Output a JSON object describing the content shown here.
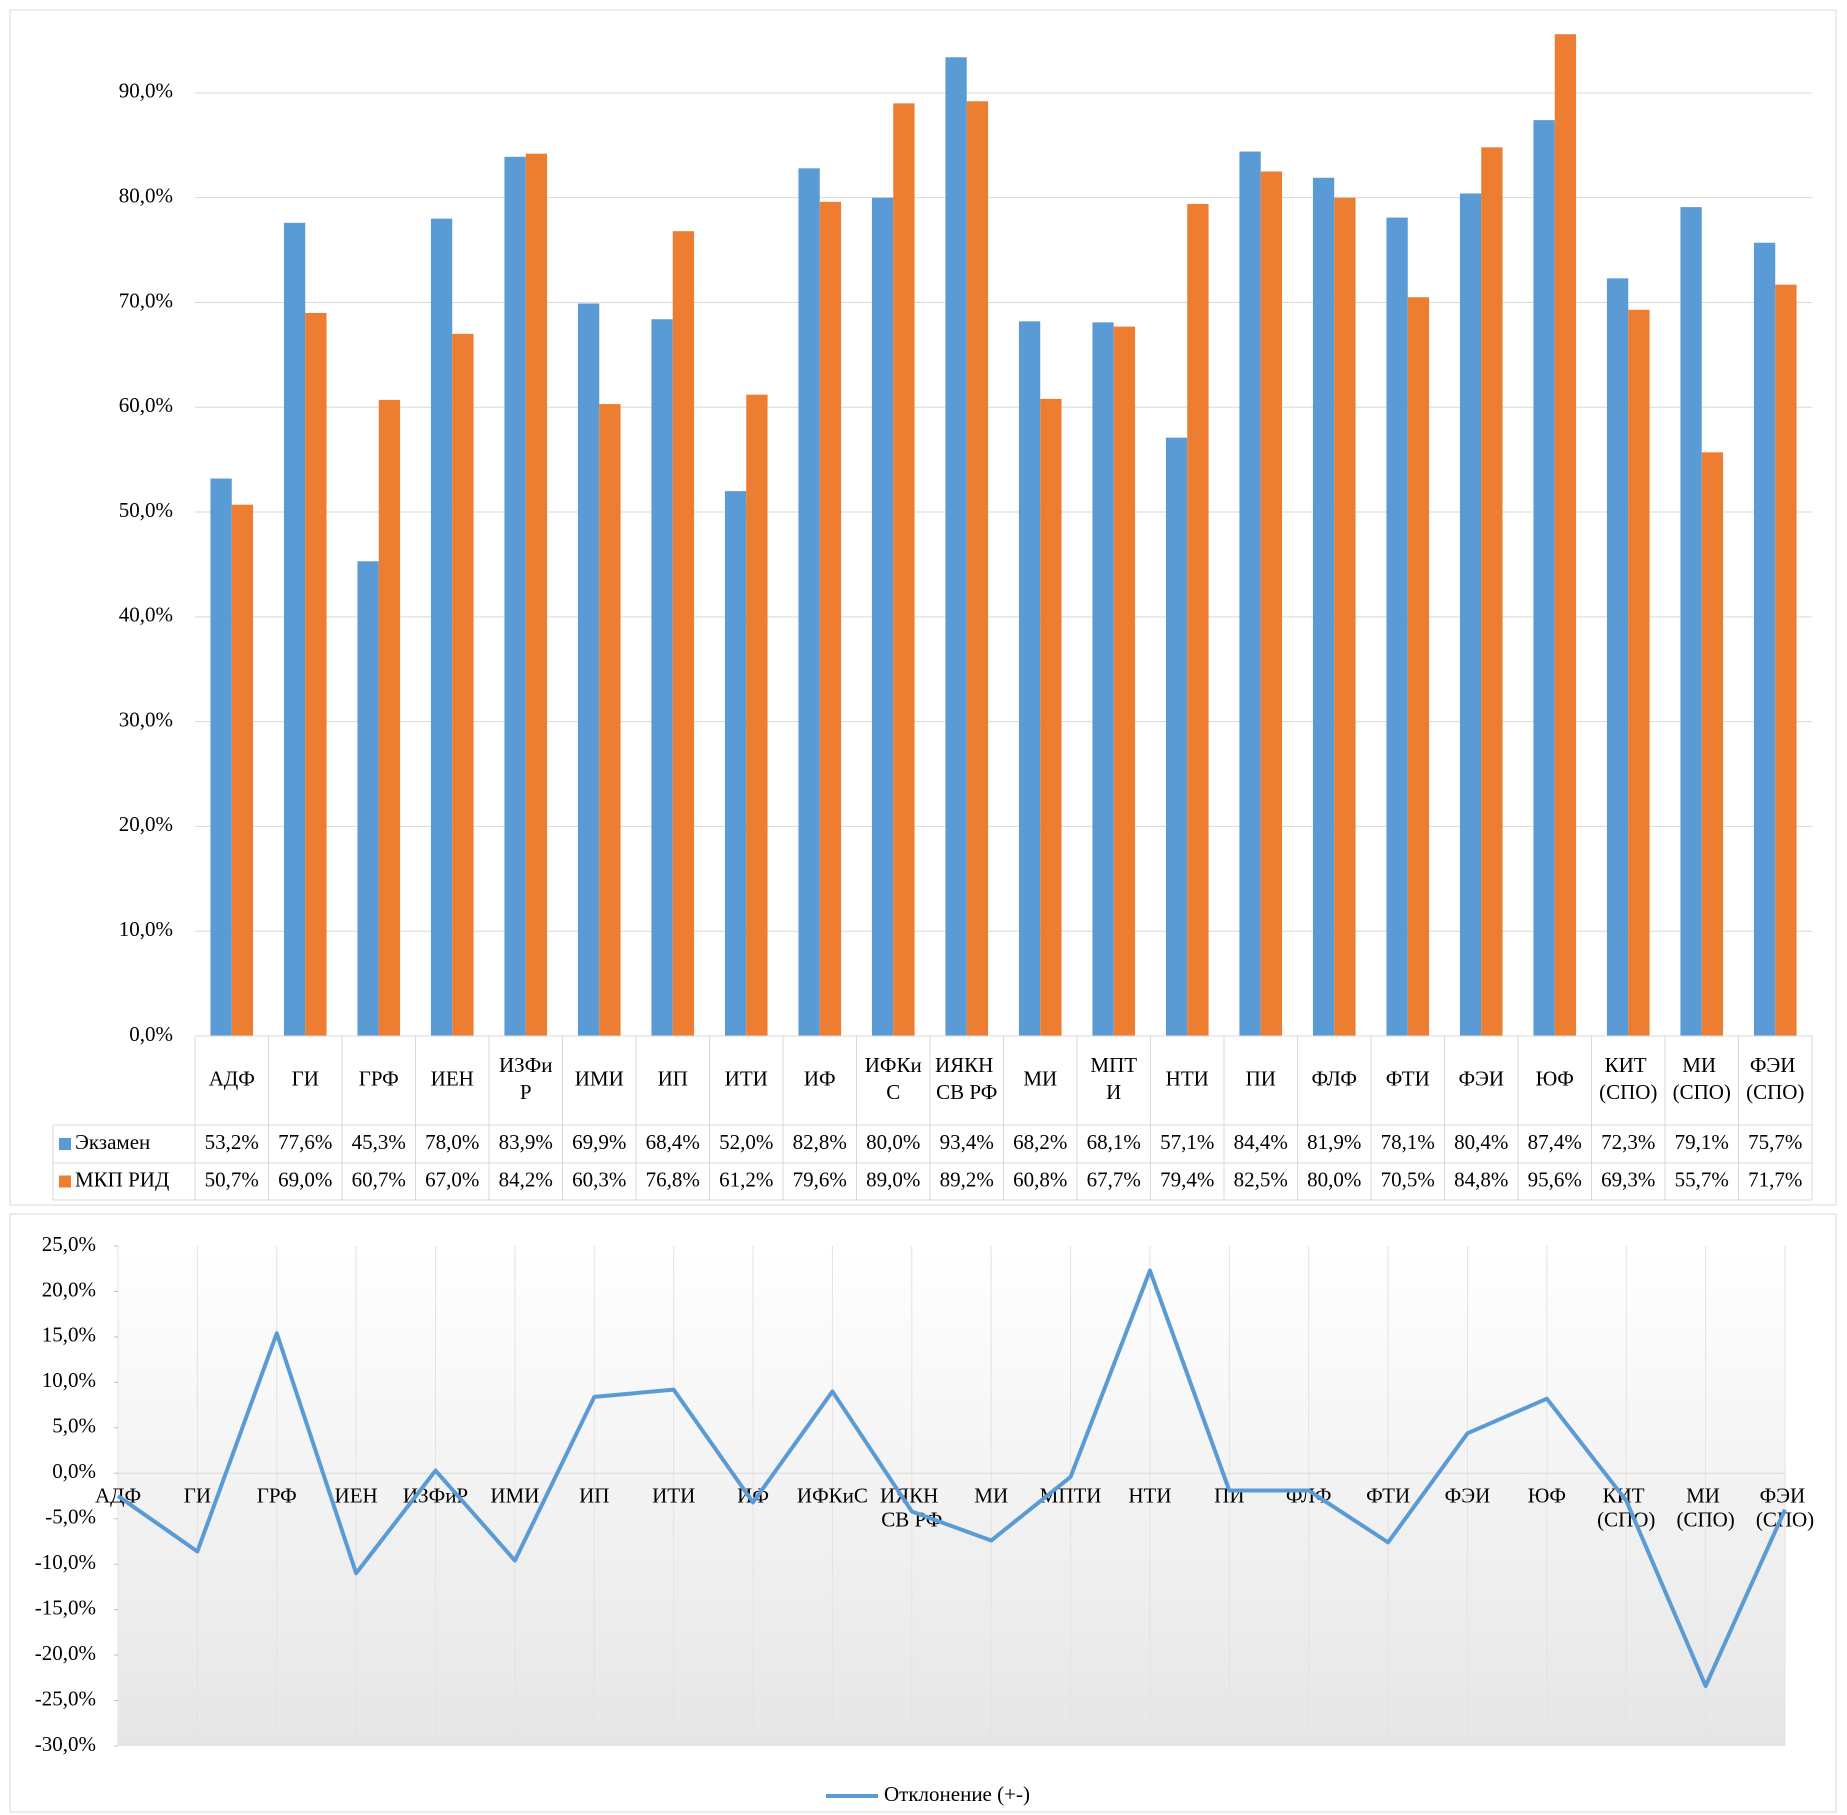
{
  "chart_data": [
    {
      "type": "bar",
      "categories": [
        "АДФ",
        "ГИ",
        "ГРФ",
        "ИЕН",
        "ИЗФиР",
        "ИМИ",
        "ИП",
        "ИТИ",
        "ИФ",
        "ИФКиС",
        "ИЯКН СВ РФ",
        "МИ",
        "МПТИ",
        "НТИ",
        "ПИ",
        "ФЛФ",
        "ФТИ",
        "ФЭИ",
        "ЮФ",
        "КИТ (СПО)",
        "МИ (СПО)",
        "ФЭИ (СПО)"
      ],
      "series": [
        {
          "name": "Экзамен",
          "color": "#5b9bd5",
          "values": [
            53.2,
            77.6,
            45.3,
            78.0,
            83.9,
            69.9,
            68.4,
            52.0,
            82.8,
            80.0,
            93.4,
            68.2,
            68.1,
            57.1,
            84.4,
            81.9,
            78.1,
            80.4,
            87.4,
            72.3,
            79.1,
            75.7
          ],
          "value_labels": [
            "53,2%",
            "77,6%",
            "45,3%",
            "78,0%",
            "83,9%",
            "69,9%",
            "68,4%",
            "52,0%",
            "82,8%",
            "80,0%",
            "93,4%",
            "68,2%",
            "68,1%",
            "57,1%",
            "84,4%",
            "81,9%",
            "78,1%",
            "80,4%",
            "87,4%",
            "72,3%",
            "79,1%",
            "75,7%"
          ]
        },
        {
          "name": "МКП РИД",
          "color": "#ed7d31",
          "values": [
            50.7,
            69.0,
            60.7,
            67.0,
            84.2,
            60.3,
            76.8,
            61.2,
            79.6,
            89.0,
            89.2,
            60.8,
            67.7,
            79.4,
            82.5,
            80.0,
            70.5,
            84.8,
            95.6,
            69.3,
            55.7,
            71.7
          ],
          "value_labels": [
            "50,7%",
            "69,0%",
            "60,7%",
            "67,0%",
            "84,2%",
            "60,3%",
            "76,8%",
            "61,2%",
            "79,6%",
            "89,0%",
            "89,2%",
            "60,8%",
            "67,7%",
            "79,4%",
            "82,5%",
            "80,0%",
            "70,5%",
            "84,8%",
            "95,6%",
            "69,3%",
            "55,7%",
            "71,7%"
          ]
        }
      ],
      "ylim": [
        0,
        96
      ],
      "yticks": [
        {
          "value": 0,
          "label": "0,0%"
        },
        {
          "value": 10,
          "label": "10,0%"
        },
        {
          "value": 20,
          "label": "20,0%"
        },
        {
          "value": 30,
          "label": "30,0%"
        },
        {
          "value": 40,
          "label": "40,0%"
        },
        {
          "value": 50,
          "label": "50,0%"
        },
        {
          "value": 60,
          "label": "60,0%"
        },
        {
          "value": 70,
          "label": "70,0%"
        },
        {
          "value": 80,
          "label": "80,0%"
        },
        {
          "value": 90,
          "label": "90,0%"
        }
      ],
      "grid": true,
      "data_table": true
    },
    {
      "type": "line",
      "categories": [
        "АДФ",
        "ГИ",
        "ГРФ",
        "ИЕН",
        "ИЗФиР",
        "ИМИ",
        "ИП",
        "ИТИ",
        "ИФ",
        "ИФКиС",
        "ИЯКН СВ РФ",
        "МИ",
        "МПТИ",
        "НТИ",
        "ПИ",
        "ФЛФ",
        "ФТИ",
        "ФЭИ",
        "ЮФ",
        "КИТ (СПО)",
        "МИ (СПО)",
        "ФЭИ (СПО)"
      ],
      "series": [
        {
          "name": "Отклонение (+-)",
          "color": "#5b9bd5",
          "values": [
            -2.5,
            -8.6,
            15.4,
            -11.0,
            0.3,
            -9.6,
            8.4,
            9.2,
            -3.2,
            9.0,
            -4.2,
            -7.4,
            -0.4,
            22.3,
            -1.9,
            -1.9,
            -7.6,
            4.4,
            8.2,
            -3.0,
            -23.4,
            -4.0
          ]
        }
      ],
      "ylim": [
        -30,
        25
      ],
      "yticks": [
        {
          "value": -30,
          "label": "-30,0%"
        },
        {
          "value": -25,
          "label": "-25,0%"
        },
        {
          "value": -20,
          "label": "-20,0%"
        },
        {
          "value": -15,
          "label": "-15,0%"
        },
        {
          "value": -10,
          "label": "-10,0%"
        },
        {
          "value": -5,
          "label": "-5,0%"
        },
        {
          "value": 0,
          "label": "0,0%"
        },
        {
          "value": 5,
          "label": "5,0%"
        },
        {
          "value": 10,
          "label": "10,0%"
        },
        {
          "value": 15,
          "label": "15,0%"
        },
        {
          "value": 20,
          "label": "20,0%"
        },
        {
          "value": 25,
          "label": "25,0%"
        }
      ],
      "legend": "bottom"
    }
  ]
}
